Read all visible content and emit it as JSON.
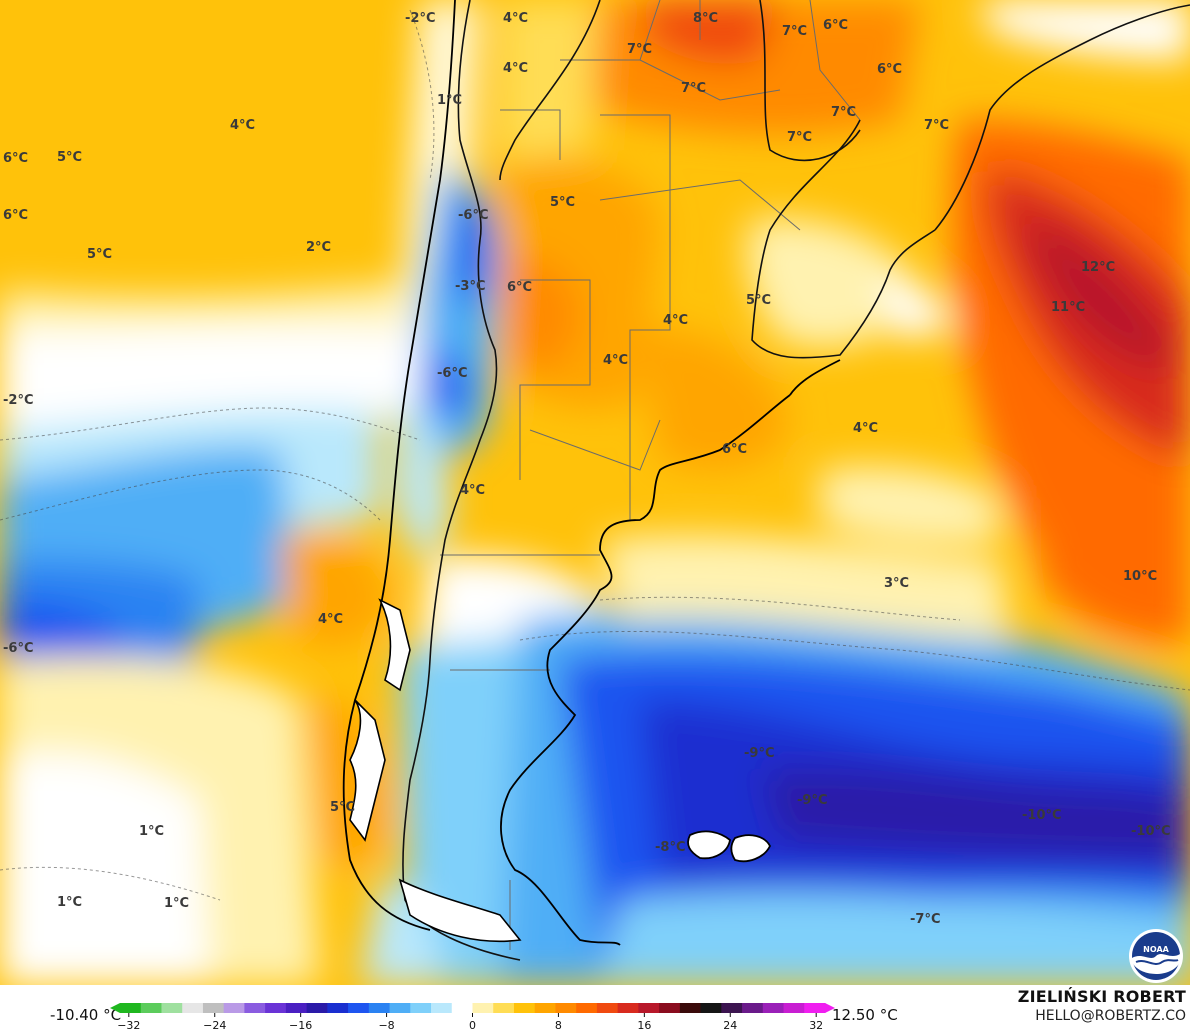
{
  "map": {
    "temperature_labels": [
      {
        "text": "-2°C"
      },
      {
        "text": "4°C"
      },
      {
        "text": "4°C"
      },
      {
        "text": "8°C"
      },
      {
        "text": "7°C"
      },
      {
        "text": "6°C"
      },
      {
        "text": "7°C"
      },
      {
        "text": "7°C"
      },
      {
        "text": "6°C"
      },
      {
        "text": "1°C"
      },
      {
        "text": "4°C"
      },
      {
        "text": "6°C"
      },
      {
        "text": "5°C"
      },
      {
        "text": "6°C"
      },
      {
        "text": "5°C"
      },
      {
        "text": "2°C"
      },
      {
        "text": "-6°C"
      },
      {
        "text": "5°C"
      },
      {
        "text": "7°C"
      },
      {
        "text": "7°C"
      },
      {
        "text": "7°C"
      },
      {
        "text": "-3°C"
      },
      {
        "text": "6°C"
      },
      {
        "text": "5°C"
      },
      {
        "text": "12°C"
      },
      {
        "text": "11°C"
      },
      {
        "text": "4°C"
      },
      {
        "text": "4°C"
      },
      {
        "text": "-6°C"
      },
      {
        "text": "-2°C"
      },
      {
        "text": "6°C"
      },
      {
        "text": "4°C"
      },
      {
        "text": "4°C"
      },
      {
        "text": "3°C"
      },
      {
        "text": "10°C"
      },
      {
        "text": "4°C"
      },
      {
        "text": "-6°C"
      },
      {
        "text": "-9°C"
      },
      {
        "text": "-9°C"
      },
      {
        "text": "-10°C"
      },
      {
        "text": "-10°C"
      },
      {
        "text": "5°C"
      },
      {
        "text": "1°C"
      },
      {
        "text": "-8°C"
      },
      {
        "text": "1°C"
      },
      {
        "text": "1°C"
      },
      {
        "text": "-7°C"
      }
    ]
  },
  "legend": {
    "min_label": "-10.40 °C",
    "max_label": "12.50 °C",
    "ticks": [
      "−32",
      "−24",
      "−16",
      "−8",
      "0",
      "8",
      "16",
      "24",
      "32"
    ],
    "colors": [
      "#1fb71f",
      "#5ccc5c",
      "#9fe09f",
      "#e6e6e6",
      "#bfbfbf",
      "#b99ae6",
      "#8a5ce0",
      "#6a33d6",
      "#4a1fc2",
      "#2a1aa8",
      "#1a2fd0",
      "#1e55f0",
      "#2a82f2",
      "#4faef6",
      "#7fd0fa",
      "#b9e8fc",
      "#ffffff",
      "#fff2b0",
      "#ffdd55",
      "#ffc20a",
      "#ffa500",
      "#ff8a00",
      "#ff6a00",
      "#f04a10",
      "#d82a1e",
      "#b8182a",
      "#8a0c1e",
      "#3a0a0a",
      "#151515",
      "#3c1450",
      "#6a1a8a",
      "#9a20b8",
      "#c81ed2",
      "#f01ef0"
    ],
    "color_min": -32,
    "color_max": 32
  },
  "branding": {
    "author": "ZIELIŃSKI ROBERT",
    "email": "HELLO@ROBERTZ.CO",
    "logo_text": "NOAA"
  },
  "palette": {
    "ocean_warm": "#ffc20a",
    "ocean_cold": "#1e55f0",
    "hot": "#d82a1e",
    "very_hot": "#8a0c1e"
  }
}
